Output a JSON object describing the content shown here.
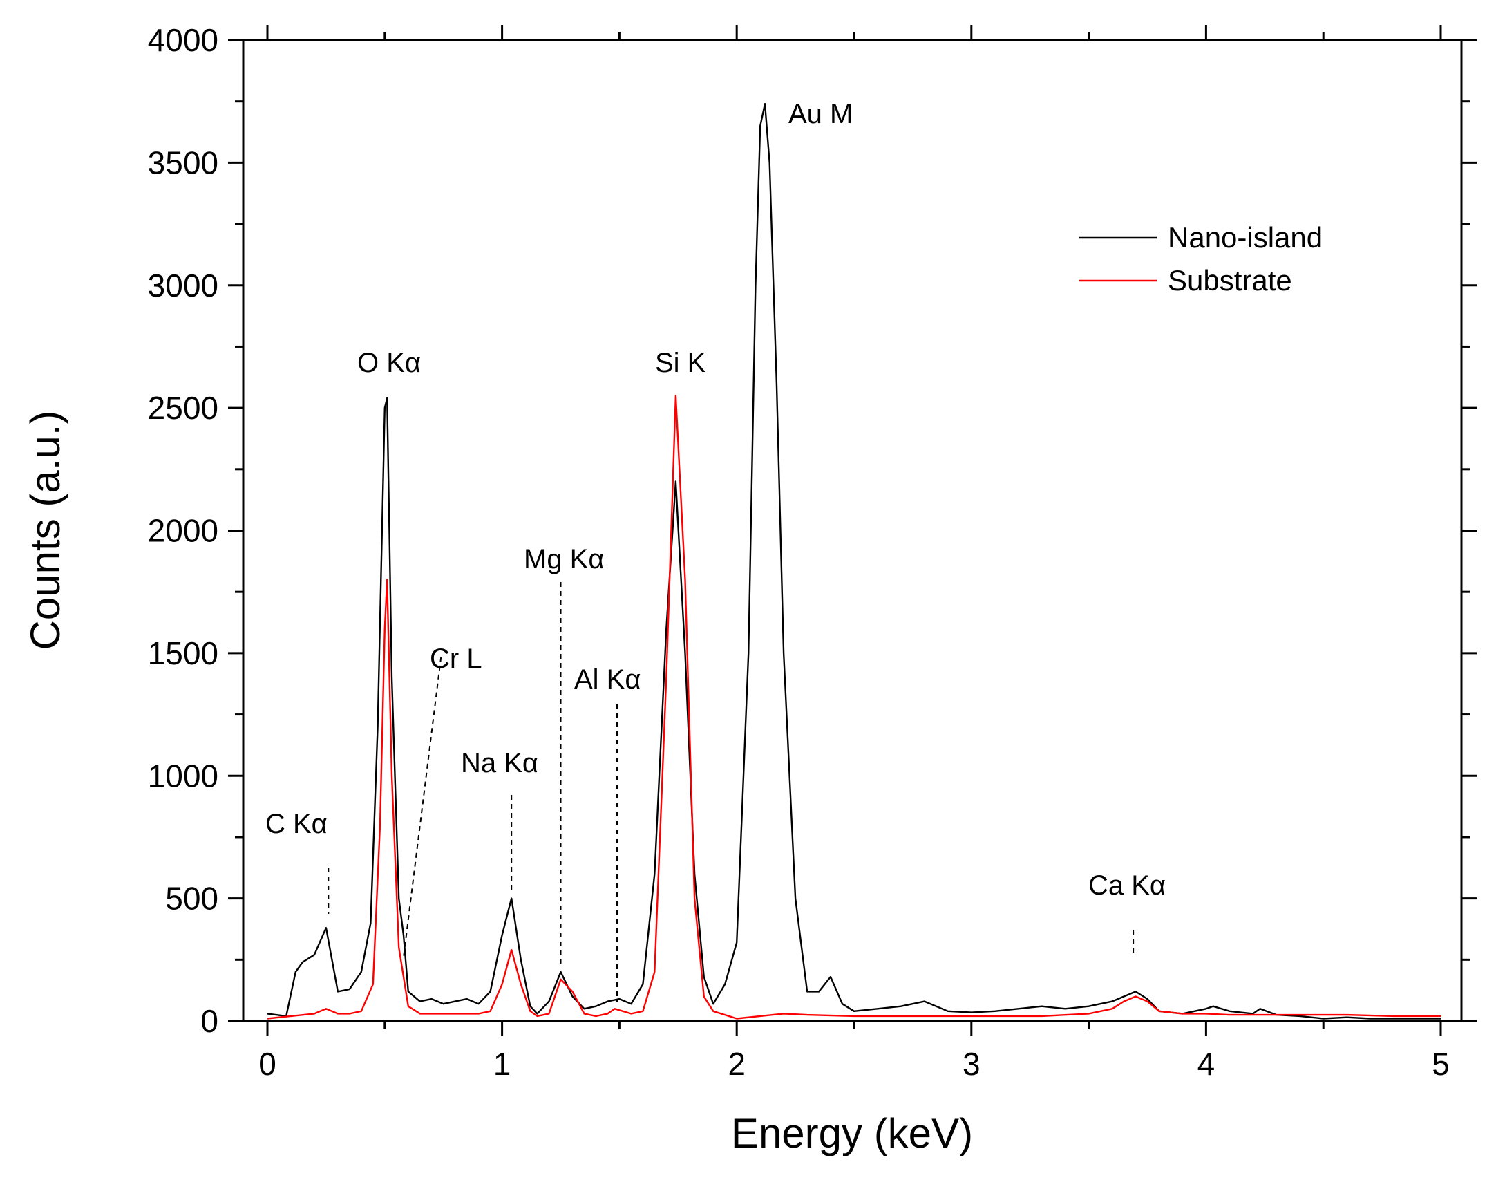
{
  "chart_data": {
    "type": "line",
    "title": "",
    "xlabel": "Energy (keV)",
    "ylabel": "Counts (a.u.)",
    "xlim": [
      -0.1,
      5.05
    ],
    "ylim": [
      0,
      4000
    ],
    "x_ticks": [
      0,
      1,
      2,
      3,
      4,
      5
    ],
    "x_tick_labels": [
      "0",
      "1",
      "2",
      "3",
      "4",
      "5"
    ],
    "y_ticks": [
      0,
      500,
      1000,
      1500,
      2000,
      2500,
      3000,
      3500,
      4000
    ],
    "y_tick_labels": [
      "0",
      "500",
      "1000",
      "1500",
      "2000",
      "2500",
      "3000",
      "3500",
      "4000"
    ],
    "legend_position": "top-right",
    "series": [
      {
        "name": "Nano-island",
        "color": "#000000",
        "x": [
          0.0,
          0.08,
          0.12,
          0.15,
          0.2,
          0.25,
          0.3,
          0.35,
          0.4,
          0.44,
          0.47,
          0.5,
          0.51,
          0.53,
          0.56,
          0.58,
          0.6,
          0.65,
          0.7,
          0.75,
          0.8,
          0.85,
          0.9,
          0.95,
          1.0,
          1.04,
          1.08,
          1.12,
          1.15,
          1.2,
          1.25,
          1.3,
          1.35,
          1.4,
          1.45,
          1.5,
          1.55,
          1.6,
          1.65,
          1.7,
          1.74,
          1.78,
          1.82,
          1.86,
          1.9,
          1.95,
          2.0,
          2.05,
          2.08,
          2.1,
          2.12,
          2.14,
          2.17,
          2.2,
          2.25,
          2.3,
          2.35,
          2.4,
          2.45,
          2.5,
          2.6,
          2.7,
          2.8,
          2.9,
          3.0,
          3.1,
          3.2,
          3.3,
          3.4,
          3.5,
          3.6,
          3.65,
          3.7,
          3.75,
          3.8,
          3.9,
          4.0,
          4.03,
          4.1,
          4.2,
          4.23,
          4.3,
          4.4,
          4.5,
          4.6,
          4.7,
          4.8,
          4.9,
          5.0
        ],
        "values": [
          30,
          20,
          200,
          240,
          270,
          380,
          120,
          130,
          200,
          400,
          1200,
          2500,
          2540,
          1400,
          500,
          350,
          120,
          80,
          90,
          70,
          80,
          90,
          70,
          120,
          350,
          500,
          250,
          60,
          30,
          80,
          200,
          100,
          50,
          60,
          80,
          90,
          70,
          150,
          600,
          1600,
          2200,
          1500,
          600,
          180,
          70,
          150,
          320,
          1500,
          3000,
          3650,
          3740,
          3500,
          2600,
          1500,
          500,
          120,
          120,
          180,
          70,
          40,
          50,
          60,
          80,
          40,
          35,
          40,
          50,
          60,
          50,
          60,
          80,
          100,
          120,
          90,
          40,
          30,
          50,
          60,
          40,
          30,
          50,
          25,
          20,
          10,
          15,
          10,
          10,
          10,
          10
        ]
      },
      {
        "name": "Substrate",
        "color": "#ff0000",
        "x": [
          0.0,
          0.1,
          0.2,
          0.25,
          0.3,
          0.35,
          0.4,
          0.45,
          0.48,
          0.5,
          0.51,
          0.53,
          0.56,
          0.6,
          0.65,
          0.7,
          0.75,
          0.8,
          0.85,
          0.9,
          0.95,
          1.0,
          1.04,
          1.08,
          1.12,
          1.15,
          1.2,
          1.25,
          1.3,
          1.35,
          1.4,
          1.45,
          1.48,
          1.55,
          1.6,
          1.65,
          1.7,
          1.74,
          1.78,
          1.82,
          1.86,
          1.9,
          2.0,
          2.1,
          2.2,
          2.3,
          2.5,
          2.7,
          3.0,
          3.3,
          3.5,
          3.6,
          3.65,
          3.7,
          3.75,
          3.8,
          3.9,
          4.0,
          4.1,
          4.2,
          4.4,
          4.6,
          4.8,
          5.0
        ],
        "values": [
          10,
          20,
          30,
          50,
          30,
          30,
          40,
          150,
          800,
          1600,
          1800,
          1000,
          300,
          60,
          30,
          30,
          30,
          30,
          30,
          30,
          40,
          150,
          290,
          150,
          40,
          20,
          30,
          170,
          120,
          30,
          20,
          30,
          50,
          30,
          40,
          200,
          1400,
          2550,
          1800,
          500,
          100,
          40,
          10,
          20,
          30,
          25,
          20,
          20,
          20,
          20,
          30,
          50,
          80,
          100,
          80,
          40,
          30,
          30,
          25,
          25,
          25,
          25,
          20,
          20
        ]
      }
    ],
    "annotations": [
      {
        "text": "C Kα",
        "x": 0.26
      },
      {
        "text": "O Kα",
        "x": 0.51
      },
      {
        "text": "Cr L",
        "x": 0.58
      },
      {
        "text": "Na Kα",
        "x": 1.04
      },
      {
        "text": "Mg Kα",
        "x": 1.25
      },
      {
        "text": "Al Kα",
        "x": 1.49
      },
      {
        "text": "Si K",
        "x": 1.74
      },
      {
        "text": "Au M",
        "x": 2.12
      },
      {
        "text": "Ca Kα",
        "x": 3.69
      }
    ]
  }
}
